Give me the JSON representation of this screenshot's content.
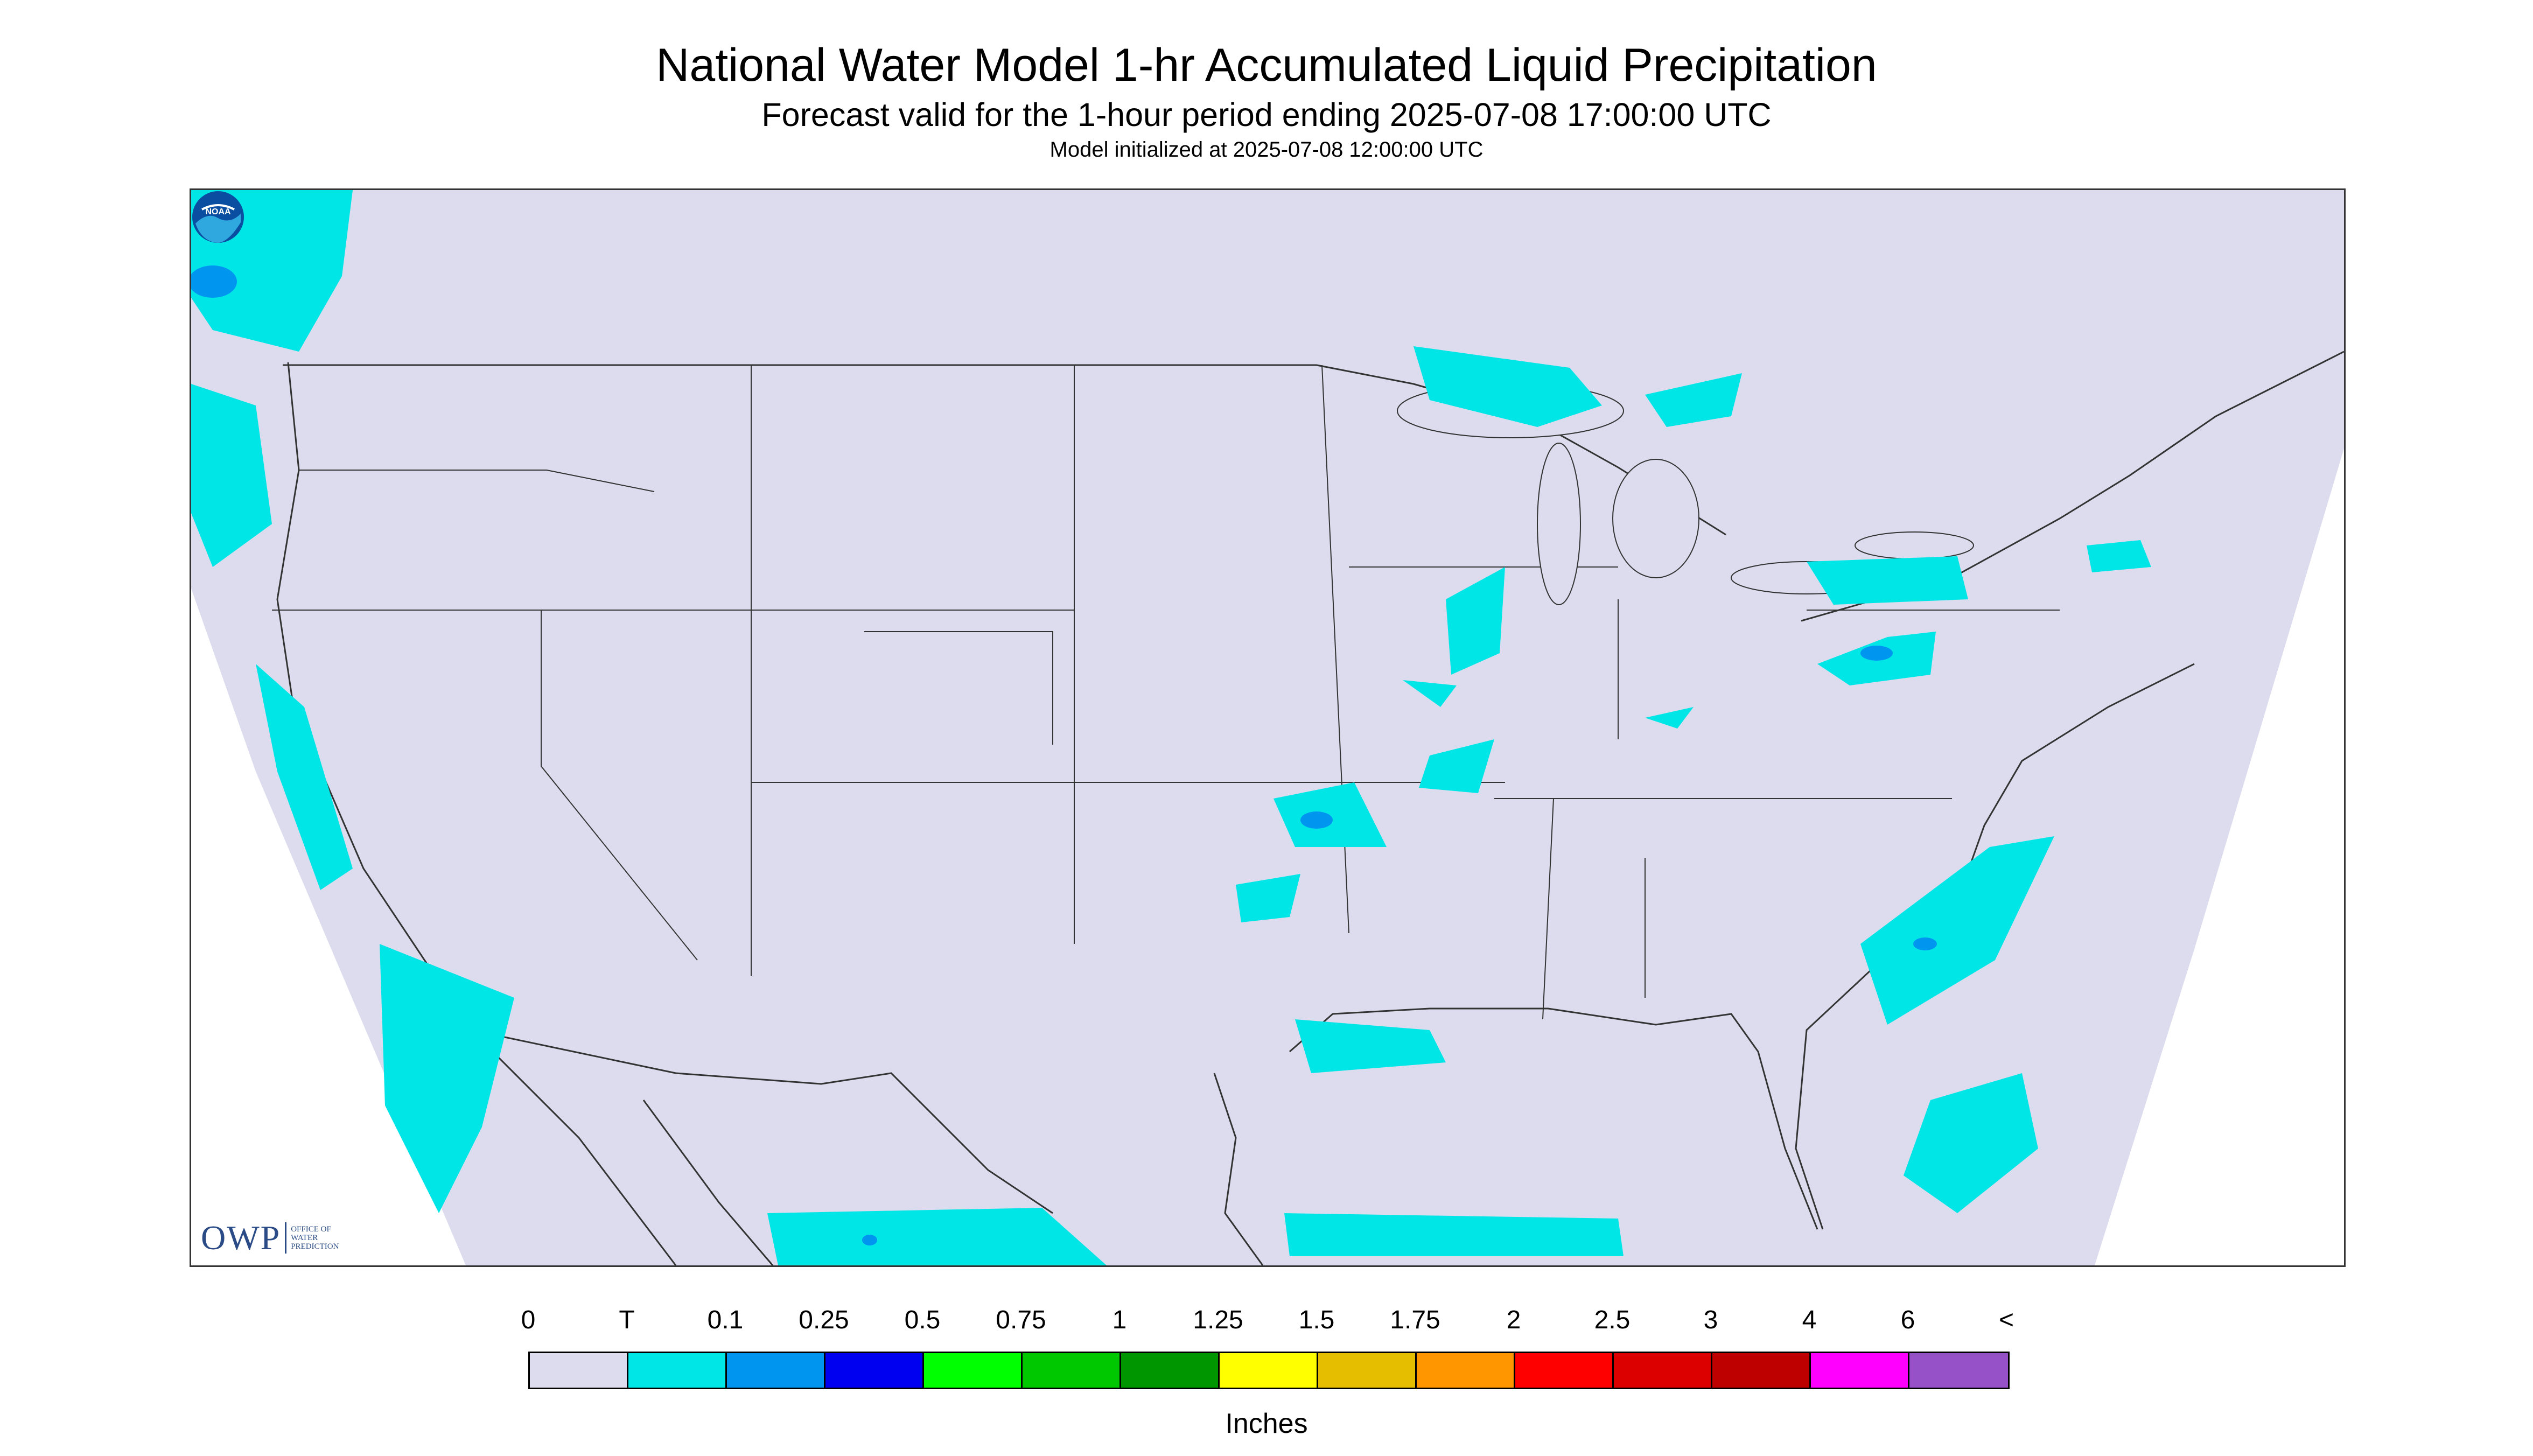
{
  "title": "National Water Model 1-hr Accumulated Liquid Precipitation",
  "subtitle": "Forecast valid for the 1-hour period ending 2025-07-08 17:00:00 UTC",
  "init_line": "Model initialized at 2025-07-08 12:00:00 UTC",
  "owp_logo": {
    "abbr": "OWP",
    "line1": "OFFICE OF",
    "line2": "WATER",
    "line3": "PREDICTION"
  },
  "noaa_logo": "NOAA",
  "legend": {
    "unit": "Inches",
    "labels": [
      "0",
      "T",
      "0.1",
      "0.25",
      "0.5",
      "0.75",
      "1",
      "1.25",
      "1.5",
      "1.75",
      "2",
      "2.5",
      "3",
      "4",
      "6",
      "<"
    ],
    "colors": [
      "#dcdcee",
      "#00e6e6",
      "#0096f0",
      "#0000f0",
      "#00ff00",
      "#00c800",
      "#009600",
      "#ffff00",
      "#e6be00",
      "#ff9600",
      "#ff0000",
      "#dc0000",
      "#be0000",
      "#ff00ff",
      "#9650c8"
    ]
  },
  "map_colors": {
    "background": "#dcdcee",
    "outside": "#ffffff",
    "boundary": "#333333"
  }
}
